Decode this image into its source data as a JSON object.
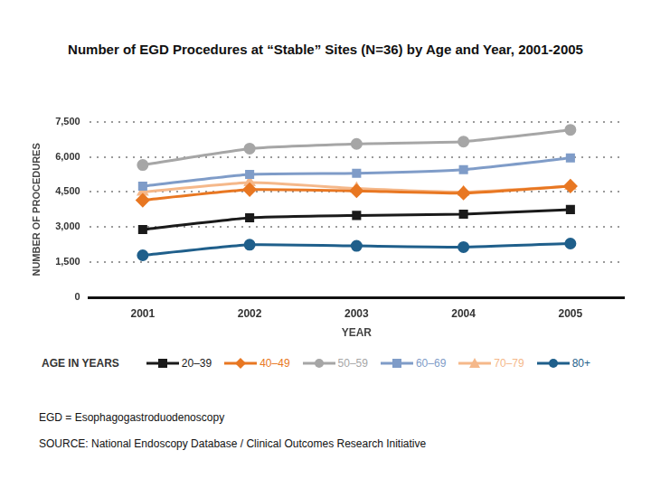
{
  "chart_data": {
    "type": "line",
    "title": "Number of EGD Procedures at “Stable” Sites (N=36) by Age and Year, 2001-2005",
    "x_label": "YEAR",
    "y_label": "NUMBER OF PROCEDURES",
    "legend_title": "AGE IN YEARS",
    "annotations": [
      "EGD = Esophagogastroduodenoscopy",
      "SOURCE: National Endoscopy Database / Clinical Outcomes Research Initiative"
    ],
    "categories": [
      "2001",
      "2002",
      "2003",
      "2004",
      "2005"
    ],
    "series": [
      {
        "name": "20–39",
        "color": "#1a1a1a",
        "marker": "square",
        "values": [
          2900,
          3400,
          3500,
          3550,
          3750
        ]
      },
      {
        "name": "40–49",
        "color": "#e87722",
        "marker": "diamond",
        "values": [
          4150,
          4600,
          4550,
          4450,
          4750
        ]
      },
      {
        "name": "50–59",
        "color": "#a6a6a6",
        "marker": "circle",
        "values": [
          5650,
          6350,
          6550,
          6650,
          7150
        ]
      },
      {
        "name": "60–69",
        "color": "#7f9cc8",
        "marker": "square",
        "values": [
          4750,
          5250,
          5300,
          5450,
          5950
        ]
      },
      {
        "name": "70–79",
        "color": "#f5b88a",
        "marker": "triangle",
        "values": [
          4500,
          4900,
          4650,
          4500,
          4750
        ]
      },
      {
        "name": "80+",
        "color": "#1f5f8b",
        "marker": "circle",
        "values": [
          1800,
          2250,
          2200,
          2150,
          2300
        ]
      }
    ],
    "ylim": [
      0,
      7500
    ],
    "yticks": [
      0,
      {
        "value": 1500,
        "label": "1,500"
      },
      {
        "value": 3000,
        "label": "3,000"
      },
      {
        "value": 4500,
        "label": "4,500"
      },
      {
        "value": 6000,
        "label": "6,000"
      },
      {
        "value": 7500,
        "label": "7,500"
      }
    ],
    "grid": true,
    "legend": "bottom"
  }
}
